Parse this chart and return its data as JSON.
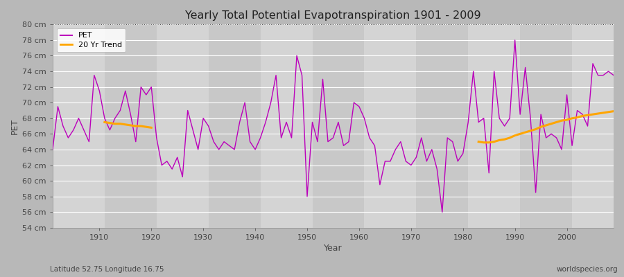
{
  "title": "Yearly Total Potential Evapotranspiration 1901 - 2009",
  "xlabel": "Year",
  "ylabel": "PET",
  "ylim": [
    54,
    80
  ],
  "xlim": [
    1901,
    2009
  ],
  "yticks": [
    54,
    56,
    58,
    60,
    62,
    64,
    66,
    68,
    70,
    72,
    74,
    76,
    78,
    80
  ],
  "ytick_labels": [
    "54 cm",
    "56 cm",
    "58 cm",
    "60 cm",
    "62 cm",
    "64 cm",
    "66 cm",
    "68 cm",
    "70 cm",
    "72 cm",
    "74 cm",
    "76 cm",
    "78 cm",
    "80 cm"
  ],
  "xticks": [
    1910,
    1920,
    1930,
    1940,
    1950,
    1960,
    1970,
    1980,
    1990,
    2000
  ],
  "pet_color": "#bb00bb",
  "trend_color": "#ffa500",
  "fig_bg_color": "#c8c8c8",
  "plot_bg_color1": "#d0d0d0",
  "plot_bg_color2": "#c0c0c0",
  "grid_color": "#ffffff",
  "annotation_left": "Latitude 52.75 Longitude 16.75",
  "annotation_right": "worldspecies.org",
  "legend_labels": [
    "PET",
    "20 Yr Trend"
  ],
  "years": [
    1901,
    1902,
    1903,
    1904,
    1905,
    1906,
    1907,
    1908,
    1909,
    1910,
    1911,
    1912,
    1913,
    1914,
    1915,
    1916,
    1917,
    1918,
    1919,
    1920,
    1921,
    1922,
    1923,
    1924,
    1925,
    1926,
    1927,
    1928,
    1929,
    1930,
    1931,
    1932,
    1933,
    1934,
    1935,
    1936,
    1937,
    1938,
    1939,
    1940,
    1941,
    1942,
    1943,
    1944,
    1945,
    1946,
    1947,
    1948,
    1949,
    1950,
    1951,
    1952,
    1953,
    1954,
    1955,
    1956,
    1957,
    1958,
    1959,
    1960,
    1961,
    1962,
    1963,
    1964,
    1965,
    1966,
    1967,
    1968,
    1969,
    1970,
    1971,
    1972,
    1973,
    1974,
    1975,
    1976,
    1977,
    1978,
    1979,
    1980,
    1981,
    1982,
    1983,
    1984,
    1985,
    1986,
    1987,
    1988,
    1989,
    1990,
    1991,
    1992,
    1993,
    1994,
    1995,
    1996,
    1997,
    1998,
    1999,
    2000,
    2001,
    2002,
    2003,
    2004,
    2005,
    2006,
    2007,
    2008,
    2009
  ],
  "pet_values": [
    64.0,
    69.5,
    67.0,
    65.5,
    66.5,
    68.0,
    66.5,
    65.0,
    73.5,
    71.5,
    68.0,
    66.5,
    68.0,
    69.0,
    71.5,
    68.5,
    65.0,
    72.0,
    71.0,
    72.0,
    65.5,
    62.0,
    62.5,
    61.5,
    63.0,
    60.5,
    69.0,
    66.5,
    64.0,
    68.0,
    67.0,
    65.0,
    64.0,
    65.0,
    64.5,
    64.0,
    67.5,
    70.0,
    65.0,
    64.0,
    65.5,
    67.5,
    70.0,
    73.5,
    65.5,
    67.5,
    65.5,
    76.0,
    73.5,
    58.0,
    67.5,
    65.0,
    73.0,
    65.0,
    65.5,
    67.5,
    64.5,
    65.0,
    70.0,
    69.5,
    68.0,
    65.5,
    64.5,
    59.5,
    62.5,
    62.5,
    64.0,
    65.0,
    62.5,
    62.0,
    63.0,
    65.5,
    62.5,
    64.0,
    61.5,
    56.0,
    65.5,
    65.0,
    62.5,
    63.5,
    67.5,
    74.0,
    67.5,
    68.0,
    61.0,
    74.0,
    68.0,
    67.0,
    68.0,
    78.0,
    68.5,
    74.5,
    68.0,
    58.5,
    68.5,
    65.5,
    66.0,
    65.5,
    64.0,
    71.0,
    64.5,
    69.0,
    68.5,
    67.0,
    75.0,
    73.5,
    73.5,
    74.0,
    73.5
  ],
  "trend_early_years": [
    1911,
    1912,
    1913,
    1914,
    1915,
    1916,
    1917,
    1918,
    1919,
    1920
  ],
  "trend_early_values": [
    67.5,
    67.4,
    67.3,
    67.3,
    67.2,
    67.1,
    67.0,
    67.0,
    66.9,
    66.8
  ],
  "trend_late_years": [
    1983,
    1984,
    1985,
    1986,
    1987,
    1988,
    1989,
    1990,
    1991,
    1992,
    1993,
    1994,
    1995,
    1996,
    1997,
    1998,
    1999,
    2000,
    2001,
    2002,
    2003,
    2004,
    2005,
    2006,
    2007,
    2008,
    2009
  ],
  "trend_late_values": [
    65.0,
    64.9,
    64.9,
    65.0,
    65.2,
    65.3,
    65.5,
    65.8,
    66.0,
    66.2,
    66.4,
    66.6,
    66.9,
    67.1,
    67.3,
    67.5,
    67.7,
    67.8,
    68.0,
    68.1,
    68.3,
    68.4,
    68.5,
    68.6,
    68.7,
    68.8,
    68.9
  ]
}
